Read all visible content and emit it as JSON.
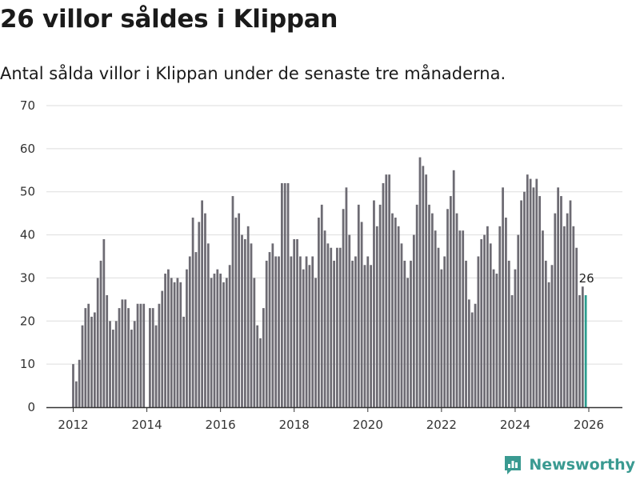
{
  "title": "26 villor såldes i Klippan",
  "subtitle": "Antal sålda villor i Klippan under de senaste tre månaderna.",
  "brand": {
    "name": "Newsworthy",
    "icon": "newsworthy-logo-icon",
    "color": "#3a9a91"
  },
  "colors": {
    "bar": "#6d6b73",
    "highlight": "#2a9d8f",
    "grid": "#dddddd",
    "axis": "#333333"
  },
  "chart_data": {
    "type": "bar",
    "title": "26 villor såldes i Klippan",
    "xlabel": "",
    "ylabel": "",
    "ylim": [
      0,
      70
    ],
    "yticks": [
      0,
      10,
      20,
      30,
      40,
      50,
      60,
      70
    ],
    "xlim": [
      2011.3,
      2026.75
    ],
    "xticks": [
      2012,
      2014,
      2016,
      2018,
      2020,
      2022,
      2024,
      2026
    ],
    "xticklabels": [
      "2012",
      "2014",
      "2016",
      "2018",
      "2020",
      "2022",
      "2024",
      "2026"
    ],
    "start": {
      "year": 2012,
      "month": 1
    },
    "series": [
      {
        "name": "Antal sålda villor (rullande tre månader)",
        "values": [
          10,
          6,
          11,
          19,
          23,
          24,
          21,
          22,
          30,
          34,
          39,
          26,
          20,
          18,
          20,
          23,
          25,
          25,
          23,
          18,
          20,
          24,
          24,
          24,
          0,
          23,
          23,
          19,
          24,
          27,
          31,
          32,
          30,
          29,
          30,
          29,
          21,
          32,
          35,
          44,
          36,
          43,
          48,
          45,
          38,
          30,
          31,
          32,
          31,
          29,
          30,
          33,
          49,
          44,
          45,
          40,
          39,
          42,
          38,
          30,
          19,
          16,
          23,
          34,
          36,
          38,
          35,
          35,
          52,
          52,
          52,
          35,
          39,
          39,
          35,
          32,
          35,
          33,
          35,
          30,
          44,
          47,
          41,
          38,
          37,
          34,
          37,
          37,
          46,
          51,
          40,
          34,
          35,
          47,
          43,
          33,
          35,
          33,
          48,
          42,
          47,
          52,
          54,
          54,
          45,
          44,
          42,
          38,
          34,
          30,
          34,
          40,
          47,
          58,
          56,
          54,
          47,
          45,
          41,
          37,
          32,
          35,
          46,
          49,
          55,
          45,
          41,
          41,
          34,
          25,
          22,
          24,
          35,
          39,
          40,
          42,
          38,
          32,
          31,
          42,
          51,
          44,
          34,
          26,
          32,
          40,
          48,
          50,
          54,
          53,
          51,
          53,
          49,
          41,
          34,
          29,
          33,
          45,
          51,
          49,
          42,
          45,
          48,
          42,
          37,
          26,
          28,
          26
        ]
      }
    ],
    "annotations": [
      {
        "text": "26",
        "at": "last bar"
      }
    ]
  }
}
